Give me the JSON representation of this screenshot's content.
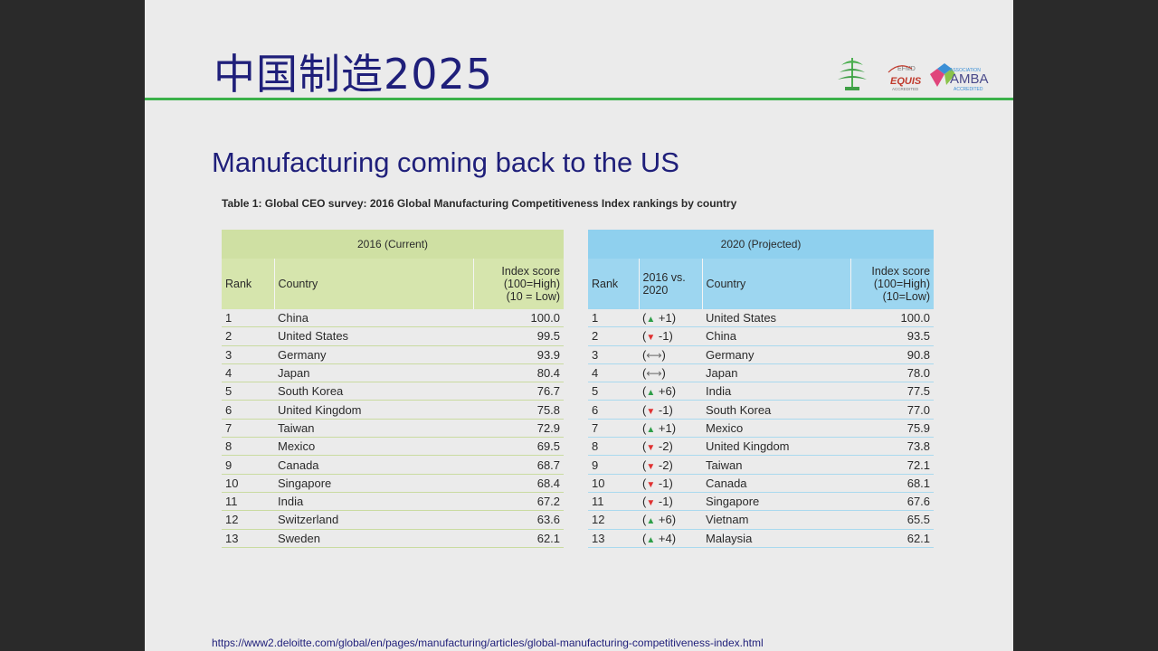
{
  "slide": {
    "title": "中国制造2025",
    "subtitle": "Manufacturing coming back to the US",
    "caption": "Table 1: Global CEO survey: 2016 Global Manufacturing Competitiveness Index rankings by country",
    "source_url": "https://www2.deloitte.com/global/en/pages/manufacturing/articles/global-manufacturing-competitiveness-index.html",
    "logos": {
      "efmd": "EFMD",
      "equis": "EQUIS",
      "equis_sub": "ACCREDITED",
      "amba": "AMBA",
      "amba_top": "ASSOCIATION",
      "amba_sub": "ACCREDITED"
    }
  },
  "table_2016": {
    "group": "2016 (Current)",
    "headers": {
      "rank": "Rank",
      "country": "Country",
      "score_1": "Index score",
      "score_2": "(100=High)",
      "score_3": "(10 = Low)"
    },
    "rows": [
      {
        "rank": "1",
        "country": "China",
        "score": "100.0"
      },
      {
        "rank": "2",
        "country": "United States",
        "score": "99.5"
      },
      {
        "rank": "3",
        "country": "Germany",
        "score": "93.9"
      },
      {
        "rank": "4",
        "country": "Japan",
        "score": "80.4"
      },
      {
        "rank": "5",
        "country": "South Korea",
        "score": "76.7"
      },
      {
        "rank": "6",
        "country": "United Kingdom",
        "score": "75.8"
      },
      {
        "rank": "7",
        "country": "Taiwan",
        "score": "72.9"
      },
      {
        "rank": "8",
        "country": "Mexico",
        "score": "69.5"
      },
      {
        "rank": "9",
        "country": "Canada",
        "score": "68.7"
      },
      {
        "rank": "10",
        "country": "Singapore",
        "score": "68.4"
      },
      {
        "rank": "11",
        "country": "India",
        "score": "67.2"
      },
      {
        "rank": "12",
        "country": "Switzerland",
        "score": "63.6"
      },
      {
        "rank": "13",
        "country": "Sweden",
        "score": "62.1"
      }
    ]
  },
  "table_2020": {
    "group": "2020 (Projected)",
    "headers": {
      "rank": "Rank",
      "change_1": "2016 vs.",
      "change_2": "2020",
      "country": "Country",
      "score_1": "Index score",
      "score_2": "(100=High)",
      "score_3": "(10=Low)"
    },
    "rows": [
      {
        "rank": "1",
        "dir": "up",
        "delta": "+1",
        "country": "United States",
        "score": "100.0"
      },
      {
        "rank": "2",
        "dir": "down",
        "delta": "-1",
        "country": "China",
        "score": "93.5"
      },
      {
        "rank": "3",
        "dir": "same",
        "delta": "",
        "country": "Germany",
        "score": "90.8"
      },
      {
        "rank": "4",
        "dir": "same",
        "delta": "",
        "country": "Japan",
        "score": "78.0"
      },
      {
        "rank": "5",
        "dir": "up",
        "delta": "+6",
        "country": "India",
        "score": "77.5"
      },
      {
        "rank": "6",
        "dir": "down",
        "delta": "-1",
        "country": "South Korea",
        "score": "77.0"
      },
      {
        "rank": "7",
        "dir": "up",
        "delta": "+1",
        "country": "Mexico",
        "score": "75.9"
      },
      {
        "rank": "8",
        "dir": "down",
        "delta": "-2",
        "country": "United Kingdom",
        "score": "73.8"
      },
      {
        "rank": "9",
        "dir": "down",
        "delta": "-2",
        "country": "Taiwan",
        "score": "72.1"
      },
      {
        "rank": "10",
        "dir": "down",
        "delta": "-1",
        "country": "Canada",
        "score": "68.1"
      },
      {
        "rank": "11",
        "dir": "down",
        "delta": "-1",
        "country": "Singapore",
        "score": "67.6"
      },
      {
        "rank": "12",
        "dir": "up",
        "delta": "+6",
        "country": "Vietnam",
        "score": "65.5"
      },
      {
        "rank": "13",
        "dir": "up",
        "delta": "+4",
        "country": "Malaysia",
        "score": "62.1"
      }
    ]
  },
  "colors": {
    "title": "#1f1f7a",
    "rule": "#3bb14a",
    "left_header": "#cfe0a3",
    "right_header": "#8fd0ee",
    "up": "#2e9e48",
    "down": "#e03030"
  }
}
